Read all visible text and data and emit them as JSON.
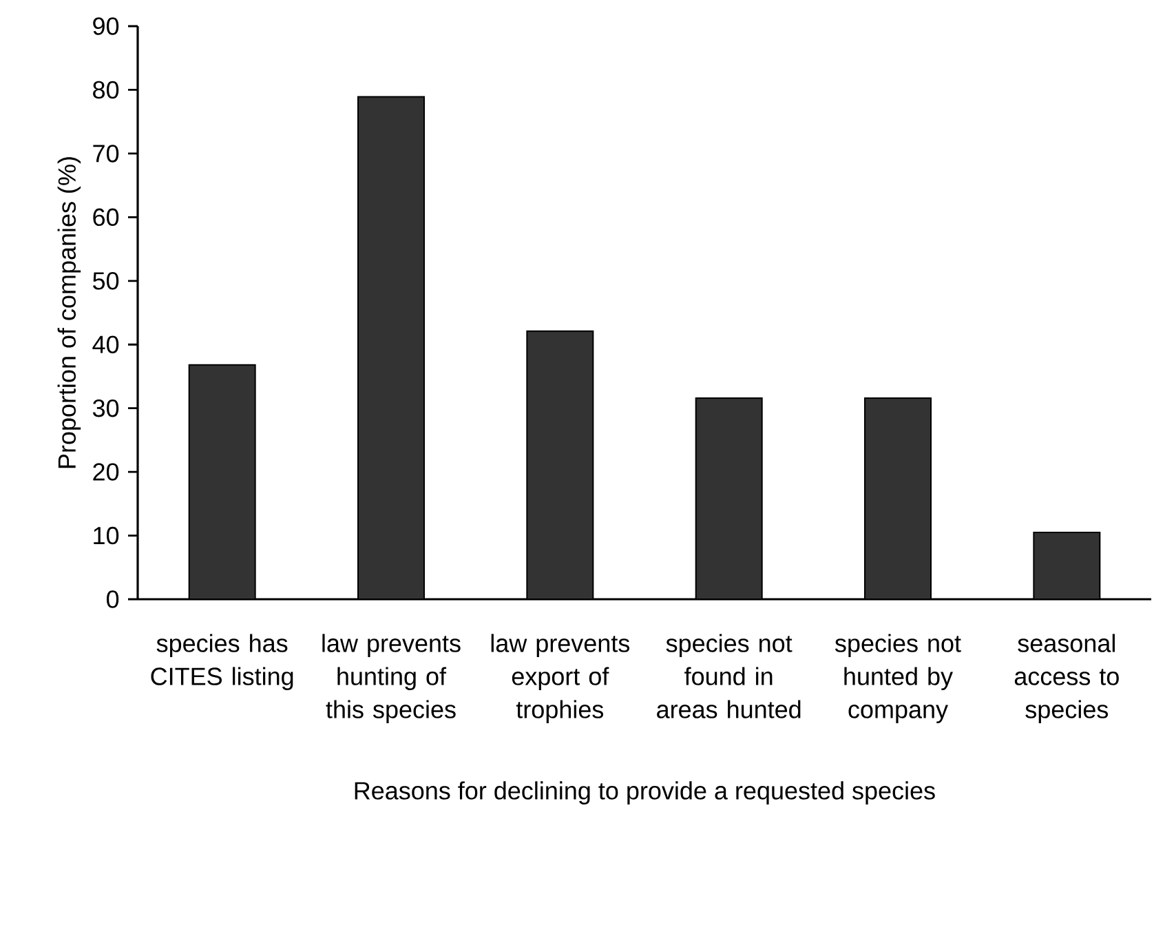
{
  "chart_data": {
    "type": "bar",
    "xlabel": "Reasons for declining to provide a requested species",
    "ylabel": "Proportion of companies (%)",
    "categories": [
      "species has CITES listing",
      "law prevents hunting of this species",
      "law prevents export of trophies",
      "species not found in areas hunted",
      "species not hunted by company",
      "seasonal access to species"
    ],
    "values": [
      36.8,
      78.9,
      42.1,
      31.6,
      31.6,
      10.5
    ],
    "color": "#333333",
    "ylim": [
      0,
      90
    ],
    "yticks": [
      0,
      10,
      20,
      30,
      40,
      50,
      60,
      70,
      80,
      90
    ]
  }
}
